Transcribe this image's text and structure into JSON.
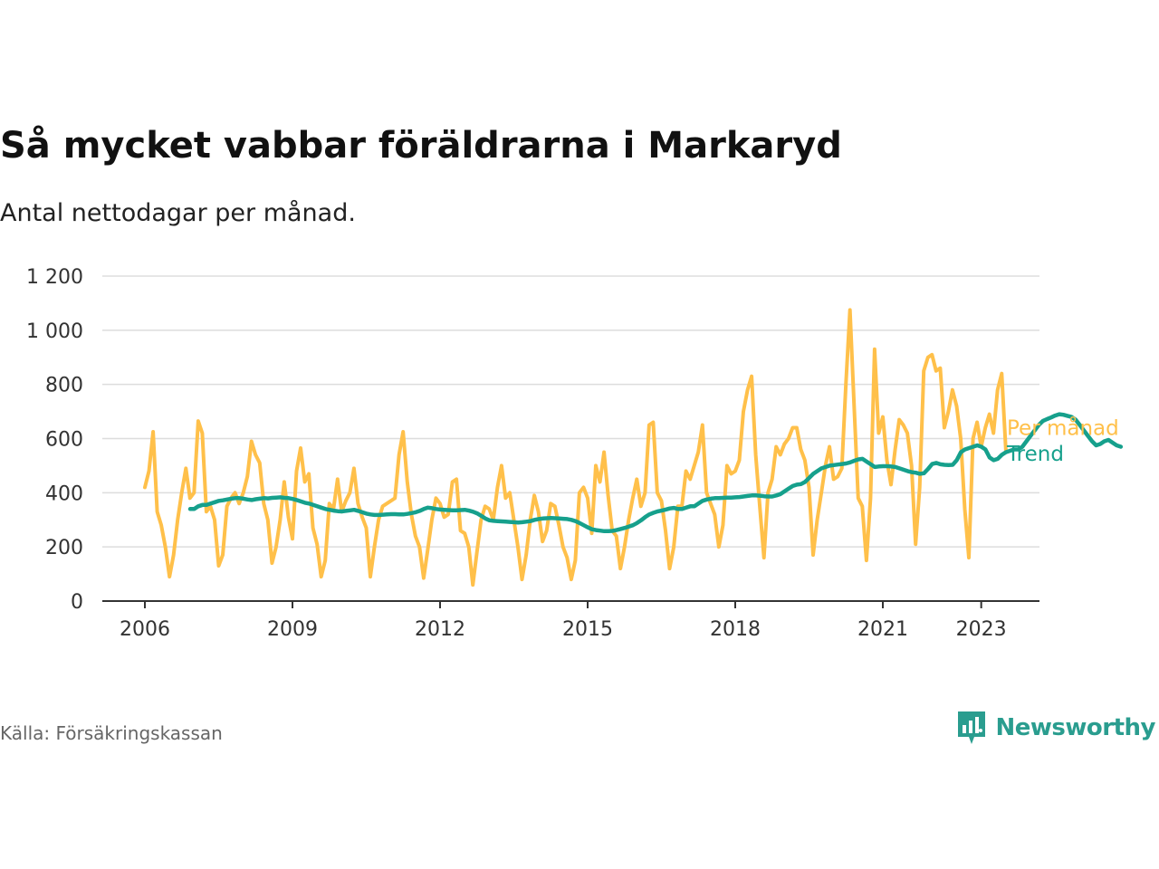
{
  "header": {
    "title": "Så mycket vabbar föräldrarna i Markaryd",
    "subtitle": "Antal nettodagar per månad."
  },
  "footer": {
    "source": "Källa: Försäkringskassan",
    "brand": "Newsworthy"
  },
  "colors": {
    "monthly": "#ffc04a",
    "trend": "#16a08c",
    "grid": "#dddddd",
    "axis": "#333333",
    "brand": "#2a9d8f"
  },
  "chart_data": {
    "type": "line",
    "title": "Så mycket vabbar föräldrarna i Markaryd",
    "subtitle": "Antal nettodagar per månad.",
    "xlabel": "",
    "ylabel": "",
    "ylim": [
      0,
      1200
    ],
    "xlim": [
      2006,
      2023.8
    ],
    "yticks": [
      0,
      200,
      400,
      600,
      800,
      1000,
      1200
    ],
    "ytick_labels": [
      "0",
      "200",
      "400",
      "600",
      "800",
      "1 000",
      "1 200"
    ],
    "xticks": [
      2006,
      2009,
      2012,
      2015,
      2018,
      2021,
      2023
    ],
    "xtick_labels": [
      "2006",
      "2009",
      "2012",
      "2015",
      "2018",
      "2021",
      "2023"
    ],
    "grid": "horizontal",
    "legend": "inline-right",
    "series": [
      {
        "name": "Per månad",
        "x_start": 2006.0,
        "x_step": 0.08333,
        "values": [
          420,
          480,
          625,
          330,
          280,
          200,
          90,
          170,
          300,
          400,
          490,
          380,
          400,
          665,
          620,
          330,
          350,
          300,
          130,
          170,
          350,
          380,
          400,
          360,
          400,
          460,
          590,
          540,
          510,
          360,
          300,
          140,
          200,
          300,
          440,
          310,
          230,
          480,
          565,
          440,
          470,
          270,
          210,
          90,
          150,
          360,
          340,
          450,
          330,
          370,
          400,
          490,
          360,
          310,
          270,
          90,
          200,
          300,
          350,
          360,
          370,
          380,
          540,
          625,
          440,
          320,
          240,
          200,
          85,
          190,
          300,
          380,
          360,
          310,
          320,
          440,
          450,
          260,
          250,
          200,
          60,
          180,
          300,
          350,
          340,
          300,
          420,
          500,
          380,
          400,
          300,
          200,
          80,
          170,
          300,
          390,
          330,
          220,
          260,
          360,
          350,
          280,
          200,
          160,
          80,
          150,
          400,
          420,
          380,
          250,
          500,
          440,
          550,
          390,
          260,
          240,
          120,
          200,
          300,
          380,
          450,
          350,
          400,
          650,
          660,
          400,
          370,
          260,
          120,
          200,
          350,
          350,
          480,
          450,
          500,
          550,
          650,
          400,
          360,
          320,
          200,
          280,
          500,
          470,
          480,
          520,
          700,
          780,
          830,
          540,
          350,
          160,
          400,
          450,
          570,
          540,
          580,
          600,
          640,
          640,
          560,
          520,
          420,
          170,
          300,
          400,
          500,
          570,
          450,
          460,
          490,
          800,
          1075,
          720,
          380,
          350,
          150,
          380,
          930,
          620,
          680,
          520,
          430,
          560,
          670,
          650,
          620,
          500,
          210,
          420,
          850,
          900,
          910,
          850,
          860,
          640,
          700,
          780,
          720,
          600,
          340,
          160,
          600,
          660,
          570,
          640,
          690,
          620,
          780,
          840,
          560
        ]
      },
      {
        "name": "Trend",
        "x_start": 2006.92,
        "x_step": 0.08333,
        "values": [
          340,
          340,
          350,
          355,
          355,
          360,
          365,
          370,
          372,
          375,
          378,
          380,
          380,
          378,
          375,
          373,
          376,
          378,
          380,
          379,
          381,
          382,
          383,
          381,
          380,
          377,
          373,
          368,
          363,
          360,
          355,
          350,
          345,
          340,
          337,
          334,
          332,
          331,
          333,
          335,
          337,
          333,
          328,
          323,
          320,
          318,
          318,
          319,
          320,
          321,
          321,
          320,
          320,
          322,
          325,
          328,
          333,
          340,
          345,
          343,
          340,
          338,
          337,
          336,
          335,
          335,
          336,
          337,
          334,
          330,
          324,
          315,
          305,
          298,
          296,
          295,
          294,
          293,
          292,
          291,
          290,
          291,
          293,
          295,
          300,
          303,
          305,
          306,
          307,
          306,
          305,
          304,
          303,
          300,
          295,
          288,
          280,
          272,
          265,
          262,
          260,
          258,
          258,
          259,
          262,
          266,
          270,
          275,
          280,
          288,
          298,
          310,
          320,
          326,
          331,
          334,
          338,
          342,
          344,
          340,
          340,
          345,
          350,
          350,
          360,
          370,
          375,
          378,
          380,
          380,
          381,
          382,
          382,
          383,
          384,
          386,
          388,
          390,
          390,
          389,
          387,
          386,
          386,
          390,
          395,
          405,
          415,
          425,
          430,
          432,
          440,
          455,
          470,
          480,
          490,
          495,
          500,
          502,
          504,
          506,
          508,
          512,
          518,
          523,
          525,
          515,
          505,
          495,
          497,
          498,
          498,
          497,
          495,
          490,
          485,
          480,
          476,
          474,
          470,
          472,
          488,
          506,
          510,
          505,
          503,
          502,
          503,
          520,
          550,
          560,
          565,
          570,
          575,
          570,
          560,
          530,
          520,
          525,
          540,
          550,
          555,
          560,
          560,
          570,
          590,
          610,
          630,
          650,
          665,
          672,
          678,
          685,
          690,
          688,
          684,
          680,
          670,
          650,
          630,
          610,
          590,
          575,
          580,
          590,
          595,
          585,
          575,
          570
        ]
      }
    ]
  }
}
